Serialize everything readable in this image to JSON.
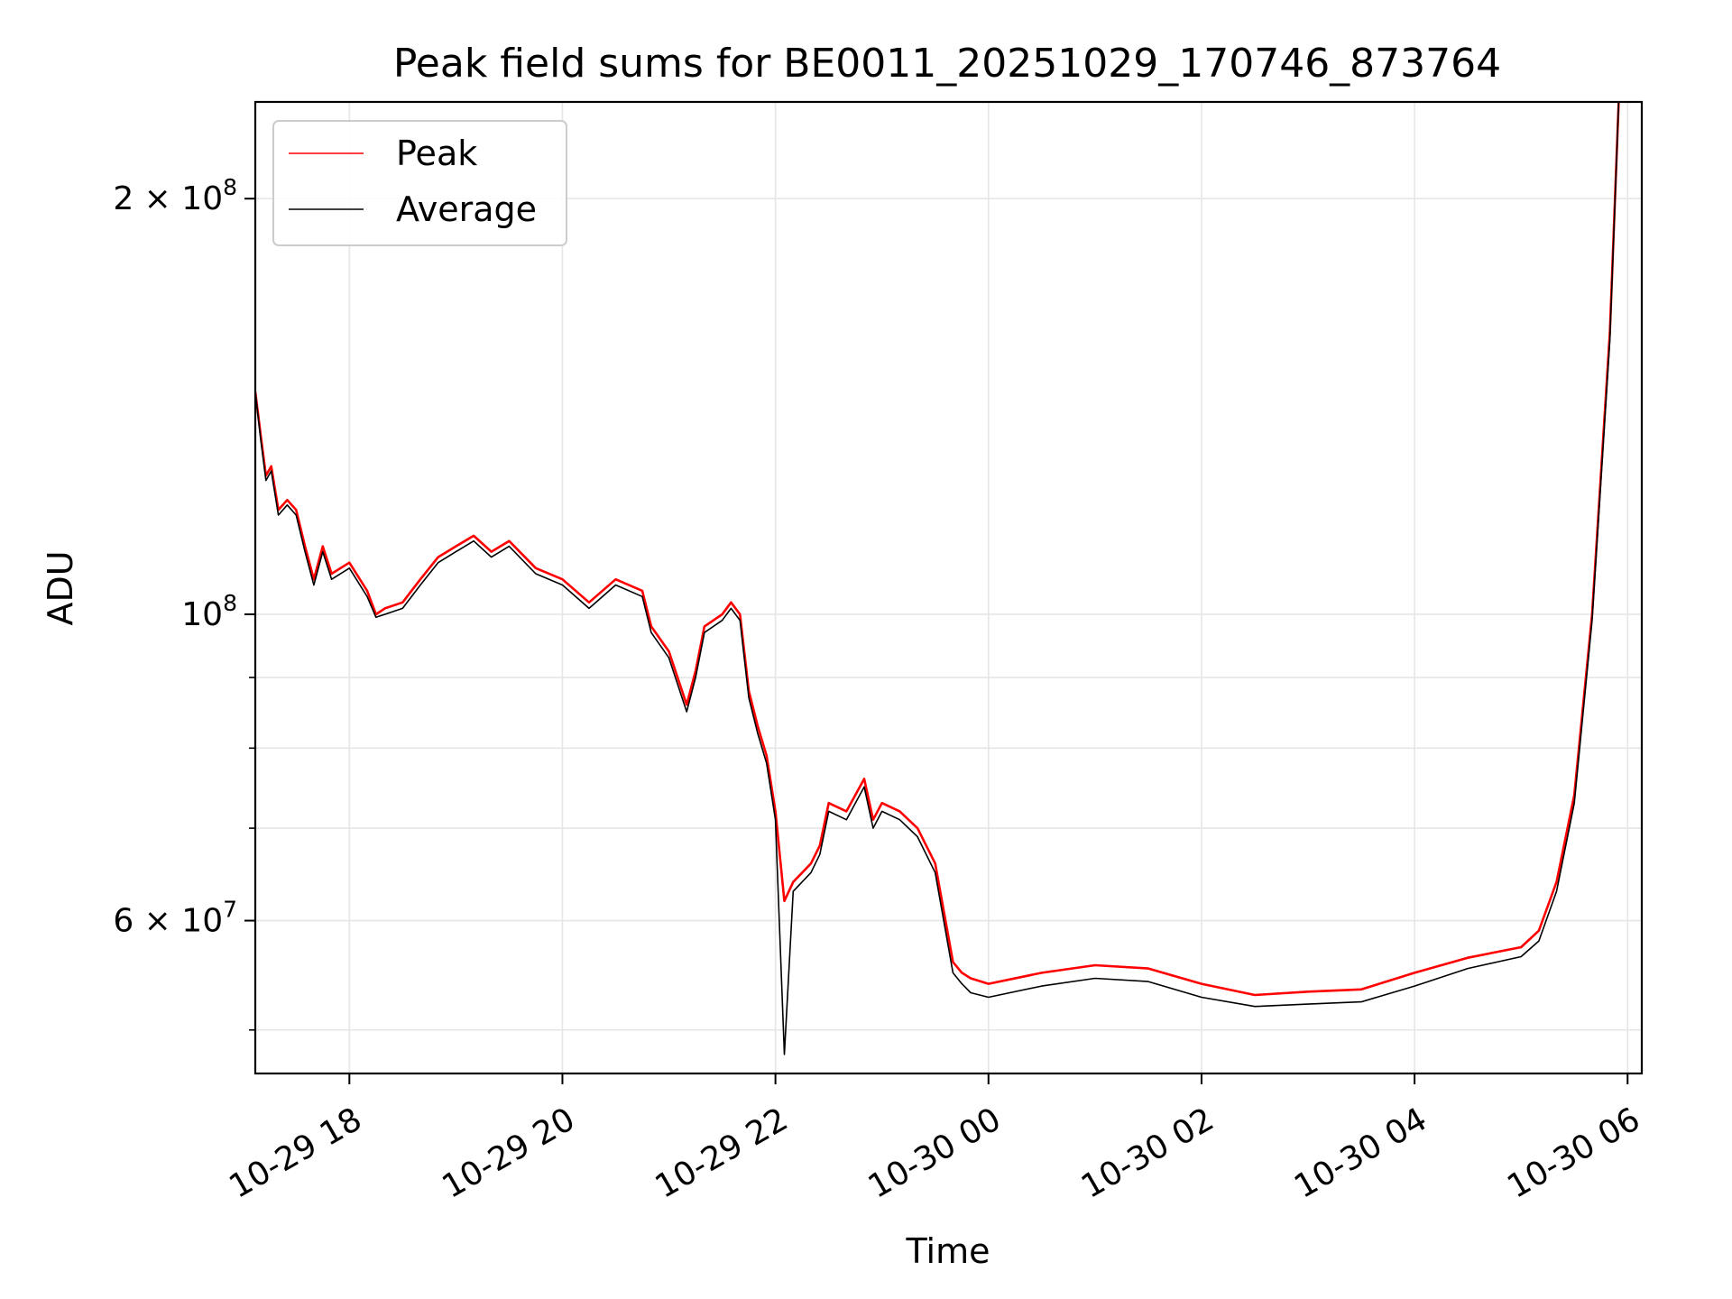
{
  "chart_data": {
    "type": "line",
    "title": "Peak field sums for BE0011_20251029_170746_873764",
    "xlabel": "Time",
    "ylabel": "ADU",
    "y_scale": "log",
    "ylim": [
      46500000,
      235000000
    ],
    "xlim": [
      "10-29 17:07",
      "10-30 06:08"
    ],
    "grid": true,
    "legend_position": "top-left",
    "x_ticks": [
      {
        "time": "10-29 18:00",
        "label": "10-29 18"
      },
      {
        "time": "10-29 20:00",
        "label": "10-29 20"
      },
      {
        "time": "10-29 22:00",
        "label": "10-29 22"
      },
      {
        "time": "10-30 00:00",
        "label": "10-30 00"
      },
      {
        "time": "10-30 02:00",
        "label": "10-30 02"
      },
      {
        "time": "10-30 04:00",
        "label": "10-30 04"
      },
      {
        "time": "10-30 06:00",
        "label": "10-30 06"
      }
    ],
    "y_major_ticks": [
      {
        "value": 100000000,
        "base": "10",
        "exp": "8"
      },
      {
        "value": 200000000,
        "base": "2 × 10",
        "exp": "8"
      },
      {
        "value": 60000000,
        "base": "6 × 10",
        "exp": "7"
      }
    ],
    "y_minor_ticks": [
      50000000,
      70000000,
      80000000,
      90000000
    ],
    "series": [
      {
        "name": "Peak",
        "color": "#ff0000",
        "x": [
          "10-29 17:07",
          "10-29 17:10",
          "10-29 17:13",
          "10-29 17:16",
          "10-29 17:20",
          "10-29 17:25",
          "10-29 17:30",
          "10-29 17:35",
          "10-29 17:40",
          "10-29 17:45",
          "10-29 17:50",
          "10-29 18:00",
          "10-29 18:10",
          "10-29 18:15",
          "10-29 18:20",
          "10-29 18:30",
          "10-29 18:40",
          "10-29 18:50",
          "10-29 19:00",
          "10-29 19:10",
          "10-29 19:20",
          "10-29 19:30",
          "10-29 19:45",
          "10-29 20:00",
          "10-29 20:15",
          "10-29 20:30",
          "10-29 20:45",
          "10-29 20:50",
          "10-29 21:00",
          "10-29 21:10",
          "10-29 21:15",
          "10-29 21:20",
          "10-29 21:30",
          "10-29 21:35",
          "10-29 21:40",
          "10-29 21:45",
          "10-29 21:50",
          "10-29 21:55",
          "10-29 22:00",
          "10-29 22:05",
          "10-29 22:10",
          "10-29 22:20",
          "10-29 22:25",
          "10-29 22:30",
          "10-29 22:40",
          "10-29 22:50",
          "10-29 22:55",
          "10-29 23:00",
          "10-29 23:10",
          "10-29 23:20",
          "10-29 23:30",
          "10-29 23:40",
          "10-29 23:45",
          "10-29 23:50",
          "10-30 00:00",
          "10-30 00:30",
          "10-30 01:00",
          "10-30 01:30",
          "10-30 02:00",
          "10-30 02:30",
          "10-30 03:00",
          "10-30 03:30",
          "10-30 04:00",
          "10-30 04:30",
          "10-30 05:00",
          "10-30 05:10",
          "10-30 05:20",
          "10-30 05:30",
          "10-30 05:40",
          "10-30 05:50",
          "10-30 05:55"
        ],
        "values": [
          145000000,
          135000000,
          126000000,
          128000000,
          119000000,
          121000000,
          119000000,
          112000000,
          106000000,
          112000000,
          107000000,
          109000000,
          104000000,
          100000000,
          101000000,
          102000000,
          106000000,
          110000000,
          112000000,
          114000000,
          111000000,
          113000000,
          108000000,
          106000000,
          102000000,
          106000000,
          104000000,
          98000000,
          94000000,
          86000000,
          91000000,
          98000000,
          100000000,
          102000000,
          100000000,
          88000000,
          83000000,
          79000000,
          72000000,
          62000000,
          64000000,
          66000000,
          68000000,
          73000000,
          72000000,
          76000000,
          71000000,
          73000000,
          72000000,
          70000000,
          66000000,
          56000000,
          55000000,
          54500000,
          54000000,
          55000000,
          55700000,
          55400000,
          54000000,
          53000000,
          53300000,
          53500000,
          55000000,
          56400000,
          57400000,
          59000000,
          64000000,
          74000000,
          100000000,
          160000000,
          235000000
        ]
      },
      {
        "name": "Average",
        "color": "#000000",
        "x": [
          "10-29 17:07",
          "10-29 17:10",
          "10-29 17:13",
          "10-29 17:16",
          "10-29 17:20",
          "10-29 17:25",
          "10-29 17:30",
          "10-29 17:35",
          "10-29 17:40",
          "10-29 17:45",
          "10-29 17:50",
          "10-29 18:00",
          "10-29 18:10",
          "10-29 18:15",
          "10-29 18:20",
          "10-29 18:30",
          "10-29 18:40",
          "10-29 18:50",
          "10-29 19:00",
          "10-29 19:10",
          "10-29 19:20",
          "10-29 19:30",
          "10-29 19:45",
          "10-29 20:00",
          "10-29 20:15",
          "10-29 20:30",
          "10-29 20:45",
          "10-29 20:50",
          "10-29 21:00",
          "10-29 21:10",
          "10-29 21:15",
          "10-29 21:20",
          "10-29 21:30",
          "10-29 21:35",
          "10-29 21:40",
          "10-29 21:45",
          "10-29 21:50",
          "10-29 21:55",
          "10-29 22:00",
          "10-29 22:05",
          "10-29 22:10",
          "10-29 22:20",
          "10-29 22:25",
          "10-29 22:30",
          "10-29 22:40",
          "10-29 22:50",
          "10-29 22:55",
          "10-29 23:00",
          "10-29 23:10",
          "10-29 23:20",
          "10-29 23:30",
          "10-29 23:40",
          "10-29 23:45",
          "10-29 23:50",
          "10-30 00:00",
          "10-30 00:30",
          "10-30 01:00",
          "10-30 01:30",
          "10-30 02:00",
          "10-30 02:30",
          "10-30 03:00",
          "10-30 03:30",
          "10-30 04:00",
          "10-30 04:30",
          "10-30 05:00",
          "10-30 05:10",
          "10-30 05:20",
          "10-30 05:30",
          "10-30 05:40",
          "10-30 05:50",
          "10-30 05:55"
        ],
        "values": [
          145000000,
          134000000,
          125000000,
          127000000,
          118000000,
          120000000,
          118000000,
          111000000,
          105000000,
          111000000,
          106000000,
          108000000,
          103000000,
          99500000,
          100000000,
          101000000,
          105000000,
          109000000,
          111000000,
          113000000,
          110000000,
          112000000,
          107000000,
          105000000,
          101000000,
          105000000,
          103000000,
          97000000,
          93000000,
          85000000,
          90000000,
          97000000,
          99000000,
          101000000,
          99000000,
          87000000,
          82000000,
          78000000,
          71000000,
          48000000,
          63000000,
          65000000,
          67000000,
          72000000,
          71000000,
          75000000,
          70000000,
          72000000,
          71000000,
          69000000,
          65000000,
          55000000,
          54000000,
          53200000,
          52800000,
          53800000,
          54500000,
          54200000,
          52800000,
          52000000,
          52200000,
          52400000,
          53800000,
          55400000,
          56500000,
          58000000,
          63000000,
          73000000,
          99000000,
          158000000,
          235000000
        ]
      }
    ]
  }
}
